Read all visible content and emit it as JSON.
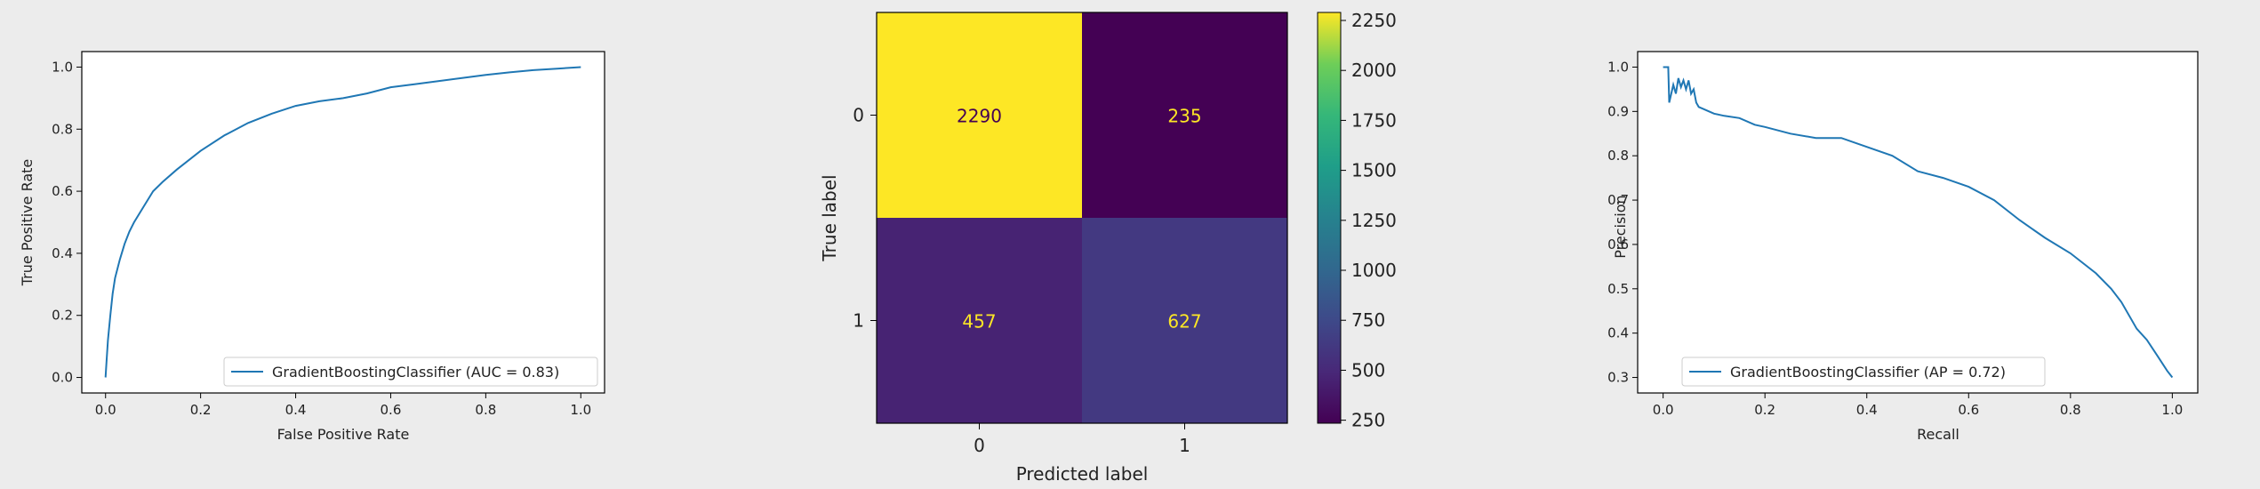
{
  "chart_data": [
    {
      "type": "line",
      "xlabel": "False Positive Rate",
      "ylabel": "True Positive Rate",
      "xlim": [
        -0.05,
        1.05
      ],
      "ylim": [
        -0.05,
        1.05
      ],
      "xticks": [
        "0.0",
        "0.2",
        "0.4",
        "0.6",
        "0.8",
        "1.0"
      ],
      "yticks": [
        "0.0",
        "0.2",
        "0.4",
        "0.6",
        "0.8",
        "1.0"
      ],
      "grid": false,
      "legend_position": "lower-right",
      "legend": "GradientBoostingClassifier (AUC = 0.83)",
      "color": "#1f77b4",
      "series": [
        {
          "name": "GradientBoostingClassifier (AUC = 0.83)",
          "x": [
            0.0,
            0.002,
            0.005,
            0.01,
            0.015,
            0.02,
            0.03,
            0.04,
            0.05,
            0.06,
            0.08,
            0.1,
            0.12,
            0.15,
            0.2,
            0.25,
            0.3,
            0.35,
            0.4,
            0.45,
            0.5,
            0.55,
            0.6,
            0.65,
            0.7,
            0.75,
            0.8,
            0.85,
            0.9,
            0.95,
            1.0
          ],
          "y": [
            0.0,
            0.05,
            0.12,
            0.2,
            0.27,
            0.32,
            0.38,
            0.43,
            0.47,
            0.5,
            0.55,
            0.6,
            0.63,
            0.67,
            0.73,
            0.78,
            0.82,
            0.85,
            0.875,
            0.89,
            0.9,
            0.915,
            0.935,
            0.945,
            0.955,
            0.965,
            0.975,
            0.983,
            0.99,
            0.995,
            1.0
          ]
        }
      ]
    },
    {
      "type": "heatmap",
      "xlabel": "Predicted label",
      "ylabel": "True label",
      "x_categories": [
        "0",
        "1"
      ],
      "y_categories": [
        "0",
        "1"
      ],
      "values": [
        [
          2290,
          235
        ],
        [
          457,
          627
        ]
      ],
      "colorbar_ticks": [
        "250",
        "500",
        "750",
        "1000",
        "1250",
        "1500",
        "1750",
        "2000",
        "2250"
      ],
      "colormap": "viridis",
      "text_colors": {
        "dark_cell_text": "#fde725",
        "light_cell_text": "#440154"
      }
    },
    {
      "type": "line",
      "xlabel": "Recall",
      "ylabel": "Precision",
      "xlim": [
        -0.05,
        1.05
      ],
      "ylim": [
        0.265,
        1.035
      ],
      "xticks": [
        "0.0",
        "0.2",
        "0.4",
        "0.6",
        "0.8",
        "1.0"
      ],
      "yticks": [
        "0.3",
        "0.4",
        "0.5",
        "0.6",
        "0.7",
        "0.8",
        "0.9",
        "1.0"
      ],
      "grid": false,
      "legend_position": "lower-left",
      "legend": "GradientBoostingClassifier (AP = 0.72)",
      "color": "#1f77b4",
      "series": [
        {
          "name": "GradientBoostingClassifier (AP = 0.72)",
          "x": [
            0.0,
            0.01,
            0.012,
            0.02,
            0.025,
            0.03,
            0.035,
            0.04,
            0.045,
            0.05,
            0.055,
            0.06,
            0.065,
            0.07,
            0.08,
            0.09,
            0.1,
            0.12,
            0.15,
            0.18,
            0.2,
            0.25,
            0.3,
            0.35,
            0.4,
            0.45,
            0.5,
            0.55,
            0.6,
            0.65,
            0.7,
            0.75,
            0.8,
            0.85,
            0.88,
            0.9,
            0.93,
            0.95,
            0.97,
            0.99,
            1.0
          ],
          "y": [
            1.0,
            1.0,
            0.92,
            0.96,
            0.94,
            0.975,
            0.955,
            0.97,
            0.95,
            0.97,
            0.94,
            0.95,
            0.92,
            0.91,
            0.905,
            0.9,
            0.895,
            0.89,
            0.885,
            0.87,
            0.865,
            0.85,
            0.84,
            0.84,
            0.82,
            0.8,
            0.765,
            0.75,
            0.73,
            0.7,
            0.655,
            0.615,
            0.58,
            0.535,
            0.5,
            0.47,
            0.41,
            0.385,
            0.35,
            0.315,
            0.3
          ]
        }
      ]
    }
  ]
}
